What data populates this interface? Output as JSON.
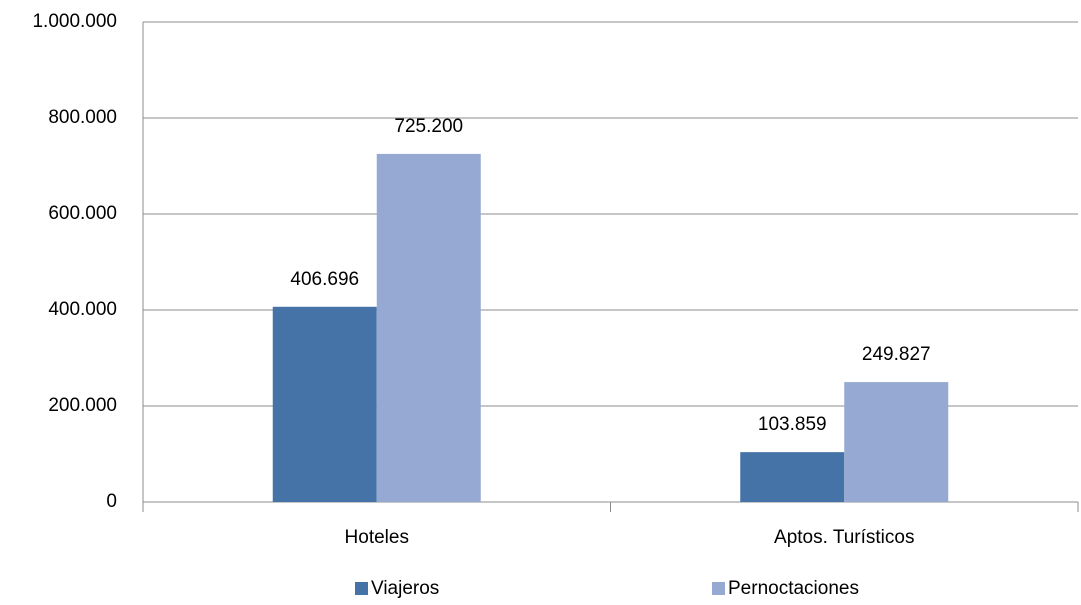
{
  "chart_data": {
    "type": "bar",
    "categories": [
      "Hoteles",
      "Aptos. Turísticos"
    ],
    "series": [
      {
        "name": "Viajeros",
        "color": "#4572a7",
        "values": [
          406696,
          103859
        ],
        "value_labels": [
          "406.696",
          "103.859"
        ]
      },
      {
        "name": "Pernoctaciones",
        "color": "#95a9d3",
        "values": [
          725200,
          249827
        ],
        "value_labels": [
          "725.200",
          "249.827"
        ]
      }
    ],
    "ylim": [
      0,
      1000000
    ],
    "yticks": [
      0,
      {
        "value": 200000,
        "label": "200.000"
      },
      {
        "value": 400000,
        "label": "400.000"
      },
      {
        "value": 600000,
        "label": "600.000"
      },
      {
        "value": 800000,
        "label": "800.000"
      },
      {
        "value": 1000000,
        "label": "1.000.000"
      }
    ],
    "grid": true,
    "legend": "bottom"
  }
}
